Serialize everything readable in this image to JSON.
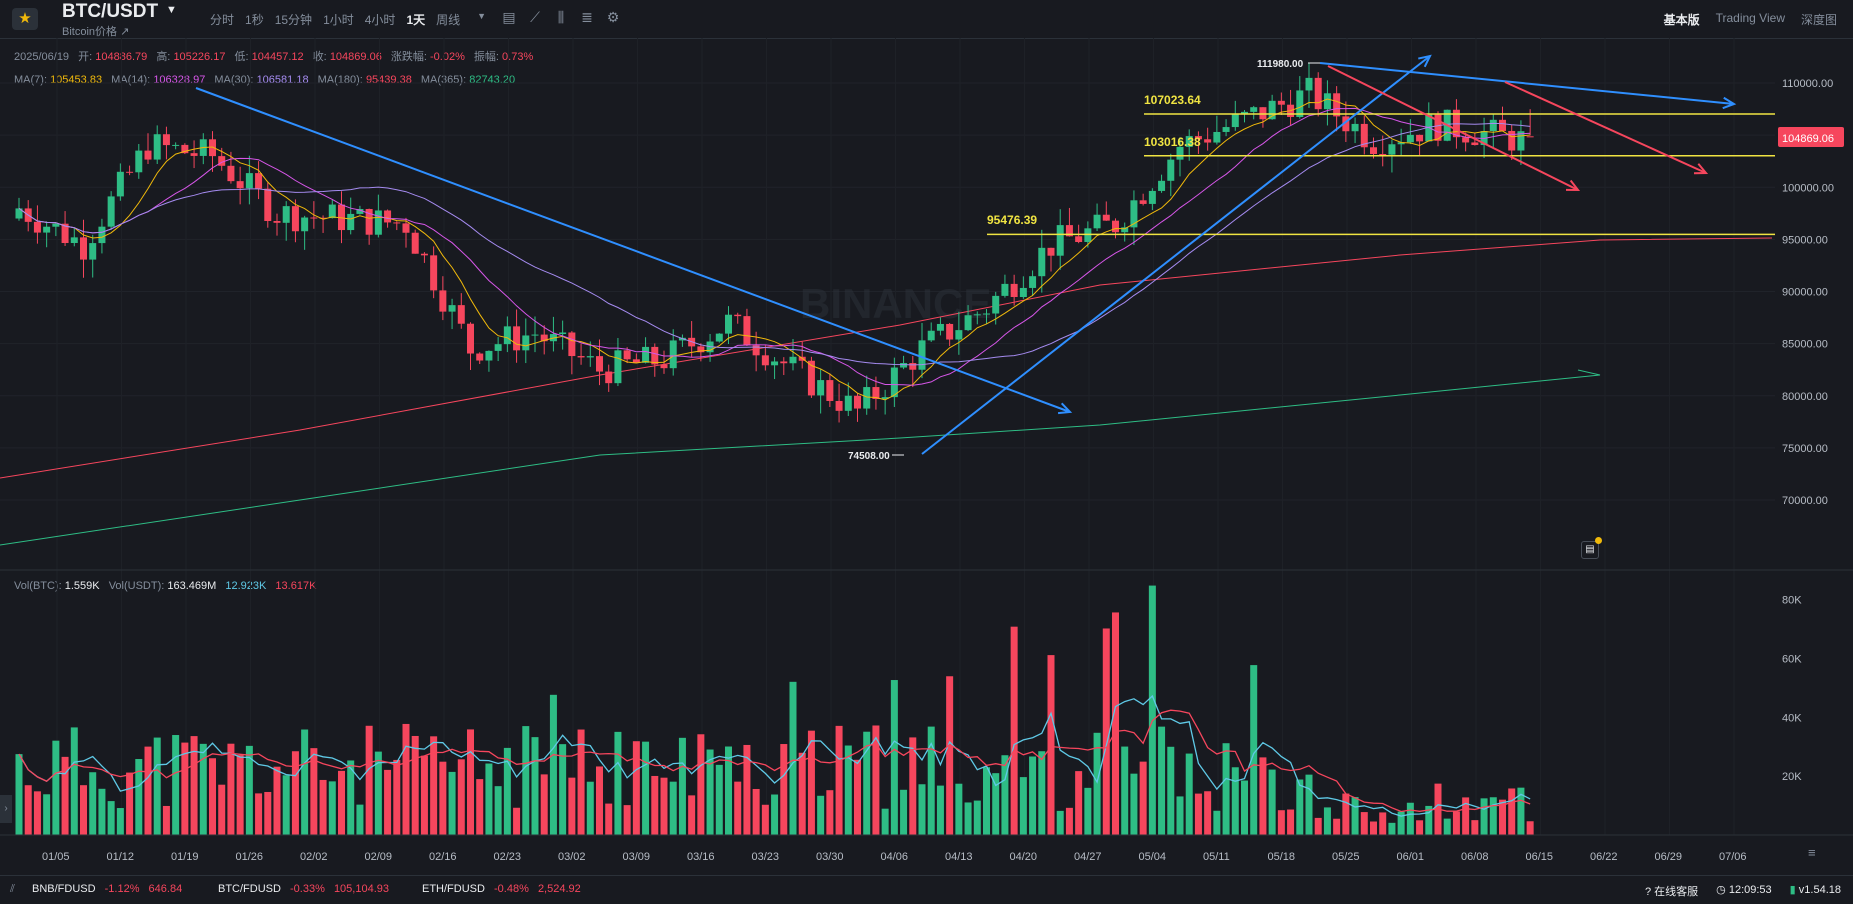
{
  "header": {
    "symbol": "BTC/USDT",
    "symbol_sub": "Bitcoin价格 ↗",
    "intervals": [
      "分时",
      "1秒",
      "15分钟",
      "1小时",
      "4小时",
      "1天",
      "周线"
    ],
    "active_interval": "1天",
    "views": [
      "基本版",
      "Trading View",
      "深度图"
    ],
    "active_view": "基本版"
  },
  "ohlc": {
    "date": "2025/06/19",
    "open_label": "开:",
    "open": "104886.79",
    "high_label": "高:",
    "high": "105226.17",
    "low_label": "低:",
    "low": "104457.12",
    "close_label": "收:",
    "close": "104869.06",
    "change_label": "涨跌幅:",
    "change": "-0.02%",
    "amp_label": "振幅:",
    "amp": "0.73%"
  },
  "ma": {
    "ma7_label": "MA(7):",
    "ma7": "105453.83",
    "ma14_label": "MA(14):",
    "ma14": "106328.97",
    "ma30_label": "MA(30):",
    "ma30": "106581.18",
    "ma180_label": "MA(180):",
    "ma180": "95439.38",
    "ma365_label": "MA(365):",
    "ma365": "82743.20",
    "colors": {
      "ma7": "#f0b90b",
      "ma14": "#d656e8",
      "ma30": "#a58bf0",
      "ma180": "#f6465d",
      "ma365": "#2ebd85"
    }
  },
  "volume": {
    "btc_label": "Vol(BTC):",
    "btc": "1.559K",
    "usdt_label": "Vol(USDT):",
    "usdt": "163.469M",
    "ma1": "12.923K",
    "ma2": "13.617K"
  },
  "price_axis": [
    "110000.00",
    "105000.00",
    "100000.00",
    "95000.00",
    "90000.00",
    "85000.00",
    "80000.00",
    "75000.00",
    "70000.00"
  ],
  "current_price": "104869.06",
  "vol_axis": [
    "80K",
    "60K",
    "40K",
    "20K"
  ],
  "date_axis": [
    "01/05",
    "01/12",
    "01/19",
    "01/26",
    "02/02",
    "02/09",
    "02/16",
    "02/23",
    "03/02",
    "03/09",
    "03/16",
    "03/23",
    "03/30",
    "04/06",
    "04/13",
    "04/20",
    "04/27",
    "05/04",
    "05/11",
    "05/18",
    "05/25",
    "06/01",
    "06/08",
    "06/15",
    "06/22",
    "06/29",
    "07/06"
  ],
  "annotations": {
    "high_mark": "111980.00",
    "low_mark": "74508.00",
    "level1": "107023.64",
    "level2": "103016.38",
    "level3": "95476.39",
    "watermark": "BINANCE"
  },
  "footer": {
    "tickers": [
      {
        "pair": "BNB/FDUSD",
        "change": "-1.12%",
        "price": "646.84"
      },
      {
        "pair": "BTC/FDUSD",
        "change": "-0.33%",
        "price": "105,104.93"
      },
      {
        "pair": "ETH/FDUSD",
        "change": "-0.48%",
        "price": "2,524.92"
      }
    ],
    "support": "在线客服",
    "time": "12:09:53",
    "version": "v1.54.18"
  },
  "chart_data": {
    "type": "candlestick",
    "interval": "1D",
    "x": [
      "01/05",
      "01/12",
      "01/19",
      "01/26",
      "02/02",
      "02/09",
      "02/16",
      "02/23",
      "03/02",
      "03/09",
      "03/16",
      "03/23",
      "03/30",
      "04/06",
      "04/13",
      "04/20",
      "04/27",
      "05/04",
      "05/11",
      "05/18",
      "05/25",
      "06/01",
      "06/08",
      "06/15"
    ],
    "approx_close_weekly": [
      98000,
      94500,
      104000,
      103000,
      97500,
      97000,
      96500,
      84500,
      86000,
      82500,
      83500,
      87000,
      82500,
      78500,
      84500,
      88500,
      94500,
      96500,
      104000,
      106500,
      109000,
      104500,
      106000,
      104869
    ],
    "ylim": [
      66000,
      113000
    ],
    "support_resistance": [
      107023.64,
      103016.38,
      95476.39
    ],
    "extremes": {
      "high": 111980.0,
      "low": 74508.0
    },
    "volume_ylim": [
      0,
      85000
    ]
  }
}
